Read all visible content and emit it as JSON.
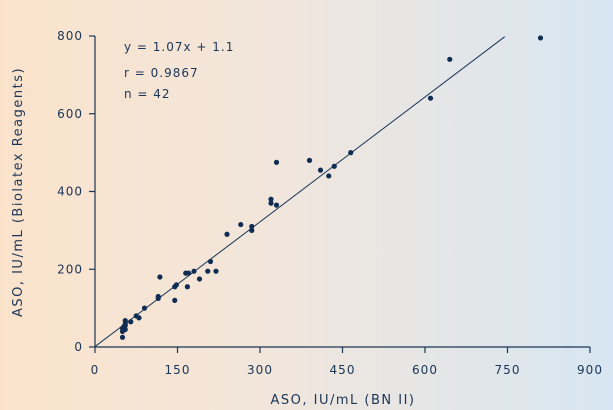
{
  "colors": {
    "ink": "#1b3556",
    "point": "#0f2c52",
    "line": "#1b3556"
  },
  "chart_data": {
    "type": "scatter",
    "xlabel": "ASO, IU/mL (BN II)",
    "ylabel": "ASO, IU/mL (Biolatex Reagents)",
    "xlim": [
      0,
      900
    ],
    "ylim": [
      0,
      800
    ],
    "xticks": [
      0,
      150,
      300,
      450,
      600,
      750,
      900
    ],
    "yticks": [
      0,
      200,
      400,
      600,
      800
    ],
    "x_tick_labels": [
      "0",
      "150",
      "300",
      "450",
      "600",
      "750",
      "900"
    ],
    "y_tick_labels": [
      "0",
      "200",
      "400",
      "600",
      "800"
    ],
    "grid": false,
    "annotations": [
      "y = 1.07x + 1.1",
      "r = 0.9867",
      "n = 42"
    ],
    "regression": {
      "slope": 1.07,
      "intercept": 1.1,
      "x_range": [
        0,
        745
      ]
    },
    "points": [
      [
        50,
        25
      ],
      [
        50,
        40
      ],
      [
        50,
        48
      ],
      [
        52,
        52
      ],
      [
        55,
        45
      ],
      [
        55,
        55
      ],
      [
        55,
        60
      ],
      [
        55,
        68
      ],
      [
        65,
        65
      ],
      [
        75,
        80
      ],
      [
        80,
        75
      ],
      [
        90,
        100
      ],
      [
        115,
        125
      ],
      [
        115,
        130
      ],
      [
        118,
        180
      ],
      [
        145,
        120
      ],
      [
        145,
        155
      ],
      [
        148,
        160
      ],
      [
        165,
        190
      ],
      [
        168,
        155
      ],
      [
        170,
        190
      ],
      [
        180,
        195
      ],
      [
        190,
        175
      ],
      [
        205,
        195
      ],
      [
        210,
        220
      ],
      [
        220,
        195
      ],
      [
        240,
        290
      ],
      [
        265,
        315
      ],
      [
        285,
        300
      ],
      [
        285,
        310
      ],
      [
        320,
        380
      ],
      [
        320,
        370
      ],
      [
        330,
        475
      ],
      [
        330,
        365
      ],
      [
        390,
        480
      ],
      [
        410,
        455
      ],
      [
        425,
        440
      ],
      [
        435,
        465
      ],
      [
        465,
        500
      ],
      [
        610,
        640
      ],
      [
        645,
        740
      ],
      [
        810,
        795
      ]
    ]
  }
}
